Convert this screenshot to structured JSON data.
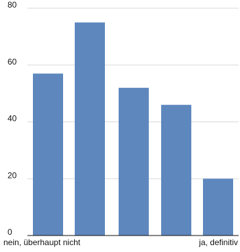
{
  "chart_data": {
    "type": "bar",
    "categories": [
      "nein, überhaupt nicht",
      "",
      "",
      "",
      "ja, definitiv"
    ],
    "values": [
      57,
      75,
      52,
      46,
      20
    ],
    "ylim": [
      0,
      80
    ],
    "yticks": [
      0,
      20,
      40,
      60,
      80
    ],
    "grid": true,
    "legend": "none",
    "bar_color": "#5e87be",
    "grid_color": "#d9d9d9",
    "axis_color": "#111111"
  }
}
